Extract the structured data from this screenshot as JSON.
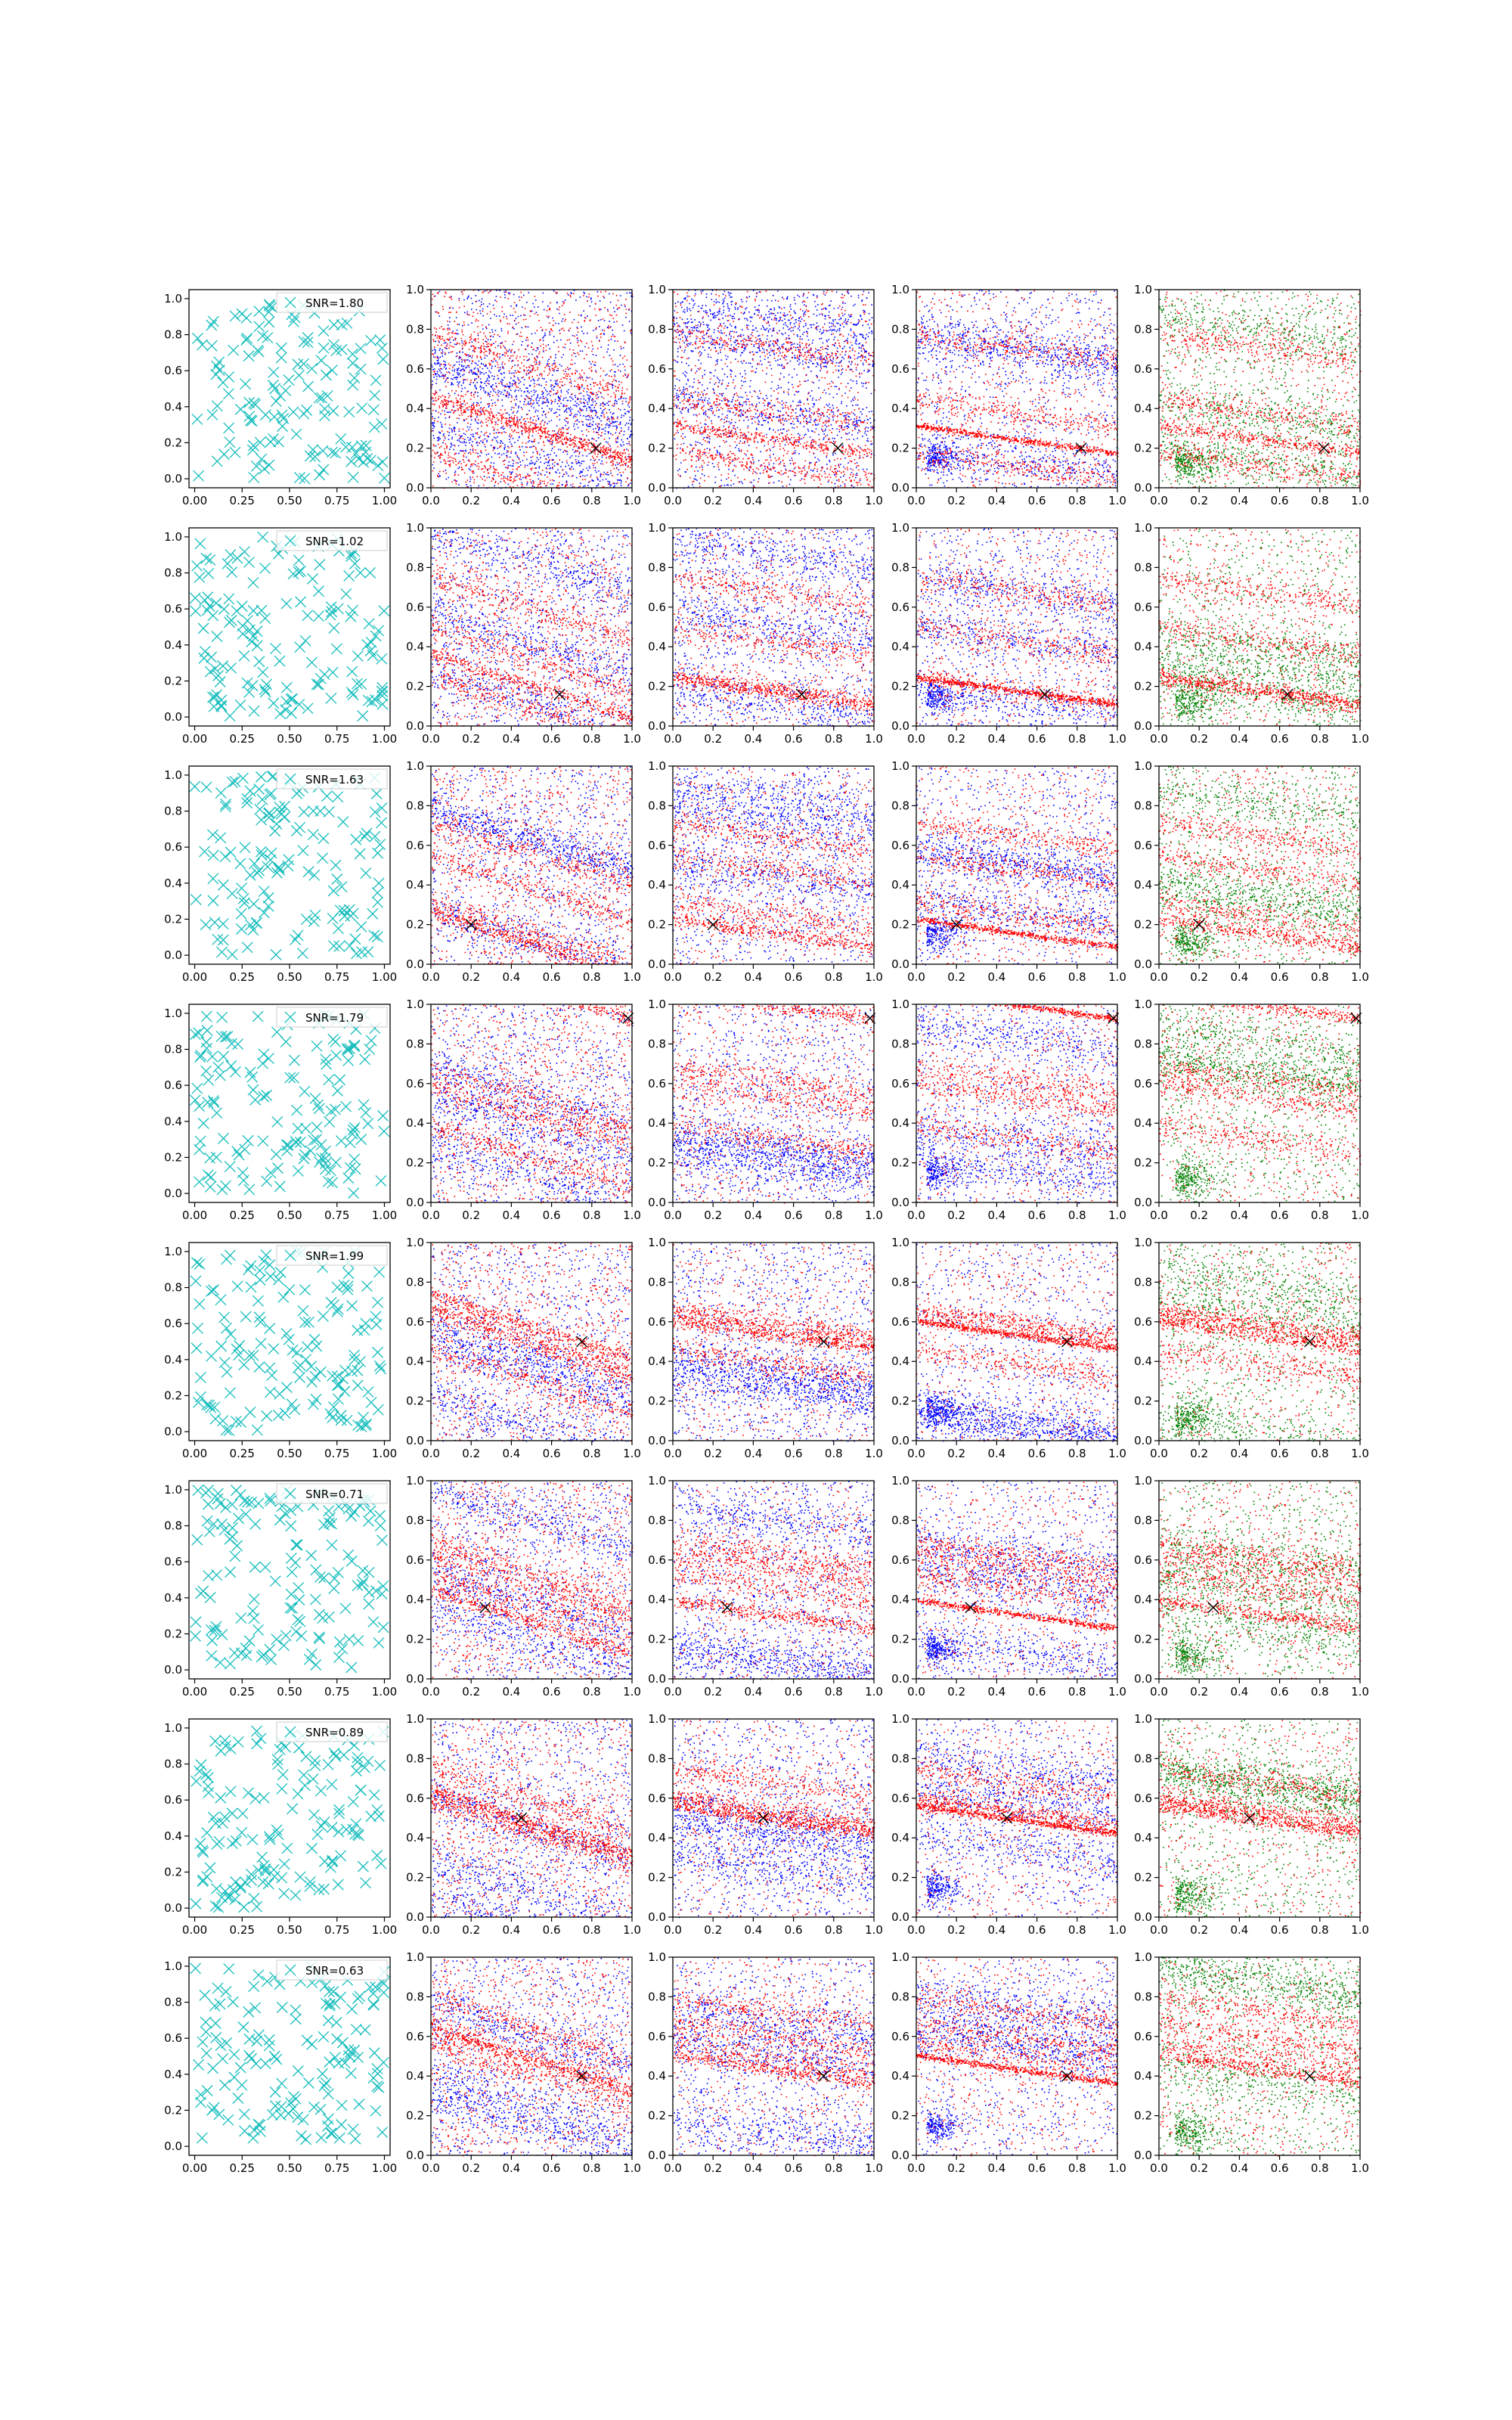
{
  "figure": {
    "rows": 8,
    "cols": 5,
    "colors": {
      "target": "#17bdbd",
      "red": "#ff0000",
      "blue": "#0000ff",
      "green": "#008000",
      "marker": "#000000"
    }
  },
  "axes": {
    "first_col": {
      "xlim": [
        -0.03,
        1.03
      ],
      "ylim": [
        -0.05,
        1.05
      ],
      "xticks": [
        "0.00",
        "0.25",
        "0.50",
        "0.75",
        "1.00"
      ],
      "yticks": [
        "0.0",
        "0.2",
        "0.4",
        "0.6",
        "0.8",
        "1.0"
      ]
    },
    "other_cols": {
      "xlim": [
        0,
        1
      ],
      "ylim": [
        0,
        1
      ],
      "xticks": [
        "0.0",
        "0.2",
        "0.4",
        "0.6",
        "0.8",
        "1.0"
      ],
      "yticks": [
        "0.0",
        "0.2",
        "0.4",
        "0.6",
        "0.8",
        "1.0"
      ]
    }
  },
  "chart_data": {
    "type": "scatter",
    "grid": false,
    "legend_placement": "top-right (first column)",
    "rows": [
      {
        "snr_label": "SNR=1.80",
        "marker_point": [
          0.82,
          0.2
        ]
      },
      {
        "snr_label": "SNR=1.02",
        "marker_point": [
          0.64,
          0.16
        ]
      },
      {
        "snr_label": "SNR=1.63",
        "marker_point": [
          0.2,
          0.2
        ]
      },
      {
        "snr_label": "SNR=1.79",
        "marker_point": [
          0.98,
          0.93
        ]
      },
      {
        "snr_label": "SNR=1.99",
        "marker_point": [
          0.75,
          0.5
        ]
      },
      {
        "snr_label": "SNR=0.71",
        "marker_point": [
          0.27,
          0.36
        ]
      },
      {
        "snr_label": "SNR=0.89",
        "marker_point": [
          0.45,
          0.5
        ]
      },
      {
        "snr_label": "SNR=0.63",
        "marker_point": [
          0.75,
          0.4
        ]
      }
    ],
    "panel_series": [
      {
        "column": 1,
        "series": [
          {
            "color": "red",
            "marker": "x",
            "approx_points": 150
          }
        ]
      },
      {
        "column": 2,
        "series": [
          {
            "color": "red"
          },
          {
            "color": "blue"
          }
        ]
      },
      {
        "column": 3,
        "series": [
          {
            "color": "red"
          },
          {
            "color": "blue"
          }
        ]
      },
      {
        "column": 4,
        "series": [
          {
            "color": "red"
          },
          {
            "color": "blue"
          }
        ]
      },
      {
        "column": 5,
        "series": [
          {
            "color": "red"
          },
          {
            "color": "green"
          }
        ]
      }
    ]
  }
}
